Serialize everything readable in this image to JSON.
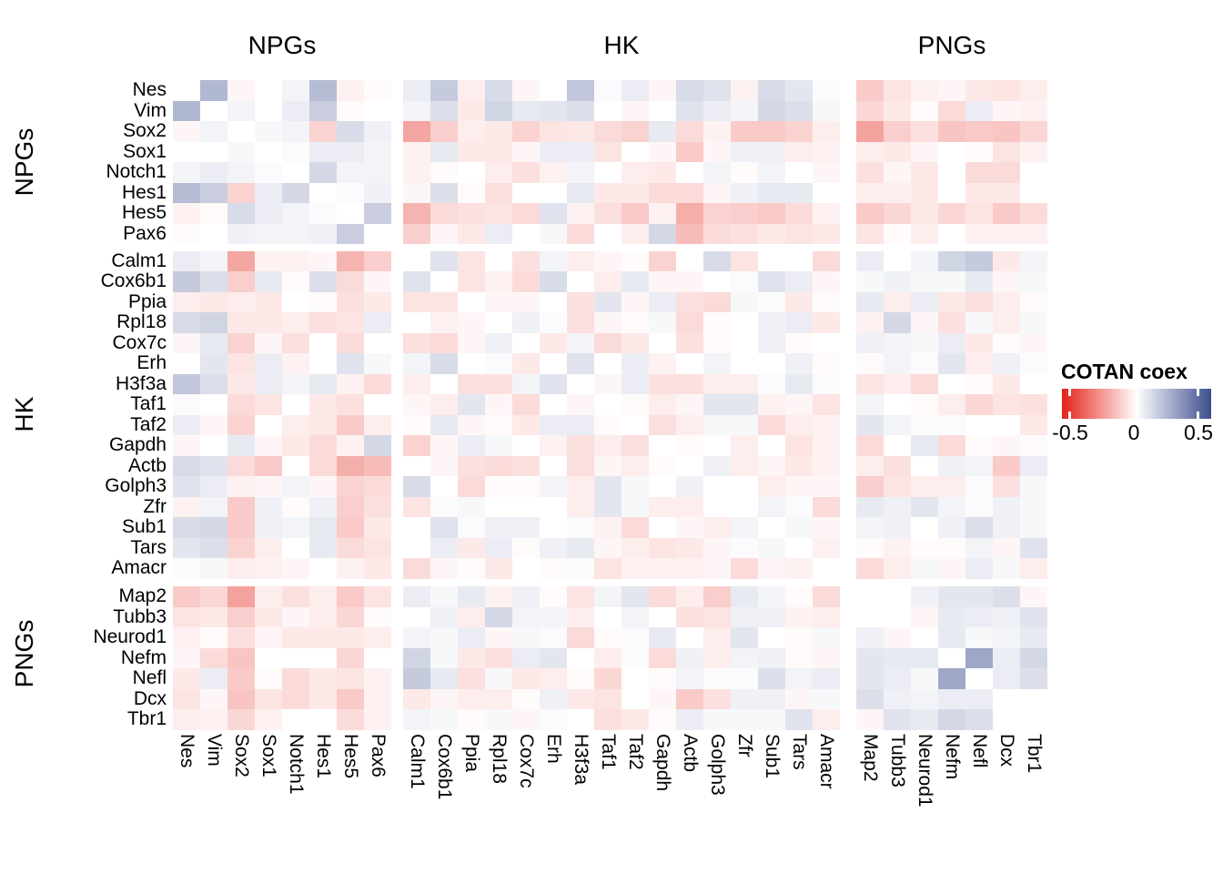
{
  "figure": {
    "col_group_headers": [
      "NPGs",
      "HK",
      "PNGs"
    ],
    "row_group_labels": [
      "NPGs",
      "HK",
      "PNGs"
    ]
  },
  "legend": {
    "title": "COTAN coex",
    "tick_labels": [
      "-0.5",
      "0",
      "0.5"
    ],
    "min": -0.5,
    "max": 0.5,
    "negative_color": "#E42117",
    "mid_color": "#FFFFFF",
    "positive_color": "#3D4E8C"
  },
  "chart_data": {
    "type": "heatmap",
    "title": "",
    "legend_title": "COTAN coex",
    "value_range": [
      -0.5,
      0.5
    ],
    "groups": [
      {
        "name": "NPGs",
        "genes": [
          "Nes",
          "Vim",
          "Sox2",
          "Sox1",
          "Notch1",
          "Hes1",
          "Hes5",
          "Pax6"
        ]
      },
      {
        "name": "HK",
        "genes": [
          "Calm1",
          "Cox6b1",
          "Ppia",
          "Rpl18",
          "Cox7c",
          "Erh",
          "H3f3a",
          "Taf1",
          "Taf2",
          "Gapdh",
          "Actb",
          "Golph3",
          "Zfr",
          "Sub1",
          "Tars",
          "Amacr"
        ]
      },
      {
        "name": "PNGs",
        "genes": [
          "Map2",
          "Tubb3",
          "Neurod1",
          "Nefm",
          "Nefl",
          "Dcx",
          "Tbr1"
        ]
      }
    ],
    "genes": [
      "Nes",
      "Vim",
      "Sox2",
      "Sox1",
      "Notch1",
      "Hes1",
      "Hes5",
      "Pax6",
      "Calm1",
      "Cox6b1",
      "Ppia",
      "Rpl18",
      "Cox7c",
      "Erh",
      "H3f3a",
      "Taf1",
      "Taf2",
      "Gapdh",
      "Actb",
      "Golph3",
      "Zfr",
      "Sub1",
      "Tars",
      "Amacr",
      "Map2",
      "Tubb3",
      "Neurod1",
      "Nefm",
      "Nefl",
      "Dcx",
      "Tbr1"
    ],
    "matrix": [
      [
        0,
        0.2,
        -0.02,
        0,
        0.03,
        0.19,
        -0.03,
        -0.01,
        0.05,
        0.15,
        -0.04,
        0.1,
        -0.02,
        0,
        0.16,
        0.01,
        0.05,
        -0.02,
        0.1,
        0.08,
        -0.03,
        0.1,
        0.07,
        0.01,
        -0.12,
        -0.06,
        -0.03,
        -0.02,
        -0.05,
        -0.06,
        -0.04
      ],
      [
        0.2,
        0,
        0.03,
        0,
        0.05,
        0.14,
        -0.01,
        0,
        0.03,
        0.09,
        -0.05,
        0.12,
        0.06,
        0.07,
        0.09,
        0,
        -0.02,
        0,
        0.08,
        0.05,
        0.03,
        0.11,
        0.09,
        0.02,
        -0.09,
        -0.05,
        -0.01,
        -0.08,
        0.05,
        -0.02,
        -0.03
      ],
      [
        -0.02,
        0.03,
        0,
        0.02,
        0.03,
        -0.1,
        0.1,
        0.04,
        -0.2,
        -0.11,
        -0.04,
        -0.05,
        -0.1,
        -0.06,
        -0.05,
        -0.08,
        -0.1,
        0.06,
        -0.08,
        -0.03,
        -0.12,
        -0.12,
        -0.1,
        -0.04,
        -0.21,
        -0.11,
        -0.07,
        -0.13,
        -0.12,
        -0.13,
        -0.09
      ],
      [
        0,
        0,
        0.02,
        0,
        0.01,
        0.05,
        0.05,
        0.03,
        -0.03,
        0.06,
        -0.05,
        -0.05,
        -0.02,
        0.05,
        0.05,
        -0.06,
        0,
        -0.02,
        -0.12,
        -0.02,
        0.04,
        0.04,
        -0.04,
        -0.03,
        -0.04,
        -0.05,
        -0.02,
        0,
        -0.01,
        -0.06,
        -0.03
      ],
      [
        0.03,
        0.05,
        0.03,
        0.01,
        0,
        0.11,
        0.03,
        0.03,
        -0.03,
        -0.01,
        0,
        -0.04,
        -0.07,
        -0.03,
        0.03,
        0,
        -0.04,
        -0.05,
        0,
        0.03,
        -0.01,
        0.03,
        0,
        -0.02,
        -0.07,
        -0.02,
        -0.05,
        0,
        -0.08,
        -0.08,
        0
      ],
      [
        0.19,
        0.14,
        -0.1,
        0.05,
        0.11,
        0,
        0.01,
        0.04,
        -0.02,
        0.09,
        -0.01,
        -0.07,
        0,
        0,
        0.06,
        -0.05,
        -0.05,
        -0.08,
        -0.08,
        -0.02,
        0.04,
        0.06,
        0.06,
        0,
        -0.04,
        -0.04,
        -0.05,
        0,
        -0.05,
        -0.05,
        0
      ],
      [
        -0.03,
        -0.01,
        0.1,
        0.05,
        0.03,
        0.01,
        0,
        0.14,
        -0.17,
        -0.08,
        -0.07,
        -0.06,
        -0.08,
        0.08,
        -0.03,
        -0.07,
        -0.12,
        -0.03,
        -0.18,
        -0.1,
        -0.11,
        -0.12,
        -0.08,
        -0.03,
        -0.12,
        -0.09,
        -0.05,
        -0.09,
        -0.06,
        -0.12,
        -0.08
      ],
      [
        -0.01,
        0,
        0.04,
        0.03,
        0.03,
        0.04,
        0.14,
        0,
        -0.11,
        -0.02,
        -0.05,
        0.05,
        0,
        0.02,
        -0.08,
        0,
        -0.04,
        0.11,
        -0.15,
        -0.08,
        -0.07,
        -0.05,
        -0.06,
        -0.05,
        -0.06,
        -0.01,
        -0.04,
        0,
        -0.03,
        -0.03,
        -0.03
      ],
      [
        0.05,
        0.03,
        -0.2,
        -0.03,
        -0.03,
        -0.02,
        -0.17,
        -0.11,
        0,
        0.08,
        -0.06,
        0,
        -0.07,
        0.03,
        -0.04,
        -0.02,
        -0.01,
        -0.1,
        0,
        0.1,
        -0.06,
        0,
        0,
        -0.08,
        0.05,
        0,
        0.03,
        0.12,
        0.15,
        -0.05,
        0.03
      ],
      [
        0.15,
        0.09,
        -0.11,
        0.06,
        -0.01,
        0.09,
        -0.08,
        -0.02,
        0.08,
        0,
        -0.06,
        -0.03,
        -0.08,
        0.1,
        0,
        -0.04,
        0.06,
        -0.02,
        -0.02,
        0,
        0.01,
        0.08,
        0.05,
        -0.02,
        0.02,
        0.04,
        0.02,
        0.02,
        0.06,
        -0.02,
        0.02
      ],
      [
        -0.04,
        -0.05,
        -0.04,
        -0.05,
        0,
        -0.01,
        -0.07,
        -0.05,
        -0.06,
        -0.06,
        0,
        -0.02,
        -0.02,
        0,
        -0.07,
        0.07,
        -0.02,
        0.05,
        -0.07,
        -0.08,
        0.02,
        0.01,
        -0.05,
        -0.01,
        0.06,
        -0.04,
        0.05,
        -0.05,
        -0.07,
        -0.04,
        -0.01
      ],
      [
        0.1,
        0.12,
        -0.05,
        -0.05,
        -0.04,
        -0.07,
        -0.06,
        0.05,
        0,
        -0.03,
        -0.02,
        0,
        0.04,
        0.01,
        -0.07,
        -0.02,
        -0.01,
        0.02,
        -0.08,
        -0.01,
        0,
        0.04,
        0.05,
        -0.05,
        -0.03,
        0.11,
        -0.02,
        -0.07,
        0.02,
        -0.04,
        0.02
      ],
      [
        -0.02,
        0.06,
        -0.1,
        -0.02,
        -0.07,
        0,
        -0.08,
        0,
        -0.07,
        -0.08,
        -0.02,
        0.04,
        0,
        -0.05,
        0.03,
        -0.08,
        -0.05,
        0,
        -0.07,
        -0.01,
        0,
        0.04,
        -0.01,
        0,
        0.04,
        0.03,
        0.02,
        0.05,
        -0.05,
        -0.01,
        -0.02
      ],
      [
        0,
        0.07,
        -0.06,
        0.05,
        -0.03,
        0,
        0.08,
        0.02,
        0.03,
        0.1,
        0,
        0.01,
        -0.05,
        0,
        0.08,
        0,
        0.05,
        -0.03,
        0,
        0.03,
        0,
        0,
        0.04,
        -0.01,
        -0.01,
        0.03,
        0.01,
        0.07,
        -0.04,
        0.04,
        0.01
      ],
      [
        0.16,
        0.09,
        -0.05,
        0.05,
        0.03,
        0.06,
        -0.03,
        -0.08,
        -0.04,
        0,
        -0.07,
        -0.07,
        0.03,
        0.08,
        0,
        -0.02,
        0.05,
        -0.07,
        -0.07,
        -0.04,
        -0.04,
        0.01,
        0.06,
        0.01,
        -0.06,
        -0.04,
        -0.08,
        0,
        -0.01,
        -0.05,
        0
      ],
      [
        0.01,
        0,
        -0.08,
        -0.06,
        0,
        -0.05,
        -0.07,
        0,
        -0.02,
        -0.04,
        0.07,
        -0.02,
        -0.08,
        0,
        -0.02,
        0,
        -0.01,
        -0.04,
        -0.02,
        0.07,
        0.07,
        -0.03,
        -0.02,
        -0.06,
        0.03,
        0,
        -0.01,
        -0.04,
        -0.09,
        -0.06,
        -0.07
      ],
      [
        0.05,
        -0.02,
        -0.1,
        0,
        -0.04,
        -0.05,
        -0.12,
        -0.04,
        -0.01,
        0.06,
        -0.02,
        -0.01,
        -0.05,
        0.05,
        0.05,
        -0.01,
        0,
        -0.07,
        -0.04,
        0.02,
        0.02,
        -0.08,
        -0.04,
        -0.03,
        0.07,
        0.03,
        0.01,
        0.01,
        0,
        0,
        -0.05
      ],
      [
        -0.02,
        0,
        0.06,
        -0.02,
        -0.05,
        -0.08,
        -0.03,
        0.11,
        -0.1,
        -0.02,
        0.05,
        0.02,
        0,
        -0.03,
        -0.07,
        -0.04,
        -0.07,
        0,
        -0.01,
        0,
        -0.04,
        0,
        -0.06,
        -0.03,
        -0.08,
        0,
        0.06,
        -0.08,
        -0.01,
        -0.02,
        -0.01
      ],
      [
        0.1,
        0.08,
        -0.08,
        -0.12,
        0,
        -0.08,
        -0.18,
        -0.15,
        0,
        -0.02,
        -0.07,
        -0.08,
        -0.07,
        0,
        -0.07,
        -0.02,
        -0.04,
        -0.01,
        0,
        0.04,
        -0.04,
        -0.02,
        -0.05,
        -0.03,
        -0.04,
        -0.07,
        0,
        0.04,
        0.03,
        -0.12,
        0.05
      ],
      [
        0.08,
        0.05,
        -0.03,
        -0.02,
        0.03,
        -0.02,
        -0.1,
        -0.08,
        0.1,
        0,
        -0.08,
        -0.01,
        -0.01,
        0.03,
        -0.04,
        0.07,
        0.02,
        0,
        0.04,
        0,
        0,
        -0.04,
        -0.02,
        -0.02,
        -0.11,
        -0.06,
        -0.04,
        -0.04,
        0.01,
        -0.07,
        0.02
      ],
      [
        -0.03,
        0.03,
        -0.12,
        0.04,
        -0.01,
        0.04,
        -0.11,
        -0.07,
        -0.06,
        0.01,
        0.02,
        0,
        0,
        0,
        -0.04,
        0.07,
        0.02,
        -0.04,
        -0.04,
        0,
        0,
        0.03,
        0.01,
        -0.08,
        0.06,
        0.04,
        0.07,
        0.03,
        0.01,
        0.04,
        0.02
      ],
      [
        0.1,
        0.11,
        -0.12,
        0.04,
        0.03,
        0.06,
        -0.12,
        -0.05,
        0,
        0.08,
        0.01,
        0.04,
        0.04,
        0,
        0.01,
        -0.03,
        -0.08,
        0,
        -0.02,
        -0.04,
        0.03,
        0,
        0.02,
        -0.02,
        0.03,
        0.04,
        0,
        0.04,
        0.09,
        0.04,
        0.02
      ],
      [
        0.07,
        0.09,
        -0.1,
        -0.04,
        0,
        0.06,
        -0.08,
        -0.06,
        0,
        0.05,
        -0.05,
        0.05,
        -0.01,
        0.04,
        0.06,
        -0.02,
        -0.04,
        -0.06,
        -0.05,
        -0.02,
        0.01,
        0.02,
        0,
        -0.03,
        -0.01,
        -0.03,
        -0.01,
        -0.01,
        0.03,
        -0.02,
        0.08
      ],
      [
        0.01,
        0.02,
        -0.04,
        -0.03,
        -0.02,
        0,
        -0.03,
        -0.05,
        -0.08,
        -0.02,
        -0.01,
        -0.05,
        0,
        -0.01,
        0.01,
        -0.06,
        -0.03,
        -0.03,
        -0.03,
        -0.02,
        -0.08,
        -0.02,
        -0.03,
        0,
        -0.08,
        -0.04,
        0.02,
        -0.02,
        0.05,
        0.02,
        -0.04
      ],
      [
        -0.12,
        -0.09,
        -0.21,
        -0.04,
        -0.07,
        -0.04,
        -0.12,
        -0.06,
        0.05,
        0.02,
        0.06,
        -0.03,
        0.04,
        -0.01,
        -0.06,
        0.03,
        0.07,
        -0.08,
        -0.04,
        -0.11,
        0.06,
        0.03,
        -0.01,
        -0.08,
        0,
        0,
        0.04,
        0.07,
        0.07,
        0.09,
        -0.02
      ],
      [
        -0.06,
        -0.05,
        -0.11,
        -0.05,
        -0.02,
        -0.04,
        -0.09,
        -0.01,
        0,
        0.04,
        -0.04,
        0.11,
        0.03,
        0.03,
        -0.04,
        0,
        0.03,
        0,
        -0.07,
        -0.06,
        0.04,
        0.04,
        -0.03,
        -0.04,
        0,
        0,
        -0.02,
        0.06,
        0.05,
        0.04,
        0.08
      ],
      [
        -0.03,
        -0.01,
        -0.07,
        -0.02,
        -0.05,
        -0.05,
        -0.05,
        -0.04,
        0.03,
        0.02,
        0.05,
        -0.02,
        0.02,
        0.01,
        -0.08,
        -0.01,
        0.01,
        0.06,
        0,
        -0.04,
        0.07,
        0,
        -0.01,
        0.02,
        0.04,
        -0.02,
        0,
        0.06,
        0.02,
        0.03,
        0.06
      ],
      [
        -0.02,
        -0.08,
        -0.13,
        0,
        0,
        0,
        -0.09,
        0,
        0.12,
        0.02,
        -0.05,
        -0.07,
        0.05,
        0.07,
        0,
        -0.04,
        0.01,
        -0.08,
        0.04,
        -0.04,
        0.03,
        0.04,
        -0.01,
        -0.02,
        0.07,
        0.06,
        0.06,
        0,
        0.25,
        0.05,
        0.11
      ],
      [
        -0.05,
        0.05,
        -0.12,
        -0.01,
        -0.08,
        -0.05,
        -0.06,
        -0.03,
        0.15,
        0.06,
        -0.07,
        0.02,
        -0.05,
        -0.04,
        -0.01,
        -0.09,
        0,
        -0.01,
        0.03,
        0.01,
        0.01,
        0.09,
        0.03,
        0.05,
        0.07,
        0.05,
        0.02,
        0.25,
        0,
        0.05,
        0.09
      ],
      [
        -0.06,
        -0.02,
        -0.13,
        -0.06,
        -0.08,
        -0.05,
        -0.12,
        -0.03,
        -0.05,
        -0.02,
        -0.04,
        -0.04,
        -0.01,
        0.04,
        -0.05,
        -0.06,
        0,
        -0.02,
        -0.12,
        -0.07,
        0.04,
        0.04,
        -0.02,
        0.02,
        0.09,
        0.04,
        0.03,
        0.05,
        0.05,
        0,
        0
      ],
      [
        -0.04,
        -0.03,
        -0.09,
        -0.03,
        0,
        0,
        -0.08,
        -0.03,
        0.03,
        0.02,
        -0.01,
        0.02,
        -0.02,
        0.01,
        0,
        -0.07,
        -0.05,
        -0.01,
        0.05,
        0.02,
        0.02,
        0.02,
        0.08,
        -0.04,
        -0.02,
        0.08,
        0.06,
        0.11,
        0.09,
        0,
        0
      ]
    ]
  }
}
